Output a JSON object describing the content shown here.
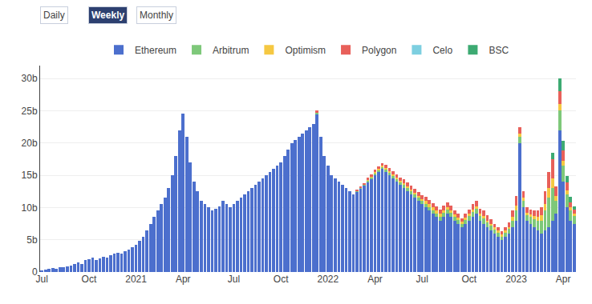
{
  "chart_data": {
    "type": "bar",
    "stacked": true,
    "grid": true,
    "legend": "upper center",
    "annotations": [
      "Daily",
      "Weekly",
      "Monthly"
    ],
    "ylim": [
      0,
      32
    ],
    "yticks": [
      0,
      {
        "value": 5,
        "label": "5b"
      },
      {
        "value": 10,
        "label": "10b"
      },
      {
        "value": 15,
        "label": "15b"
      },
      {
        "value": 20,
        "label": "20b"
      },
      {
        "value": 25,
        "label": "25b"
      },
      {
        "value": 30,
        "label": "30b"
      }
    ],
    "categories": [
      "Jul",
      null,
      null,
      null,
      null,
      null,
      null,
      null,
      null,
      null,
      null,
      null,
      null,
      "Oct",
      null,
      null,
      null,
      null,
      null,
      null,
      null,
      null,
      null,
      null,
      null,
      null,
      "2021",
      null,
      null,
      null,
      null,
      null,
      null,
      null,
      null,
      null,
      null,
      null,
      null,
      "Apr",
      null,
      null,
      null,
      null,
      null,
      null,
      null,
      null,
      null,
      null,
      null,
      null,
      null,
      "Jul",
      null,
      null,
      null,
      null,
      null,
      null,
      null,
      null,
      null,
      null,
      null,
      null,
      "Oct",
      null,
      null,
      null,
      null,
      null,
      null,
      null,
      null,
      null,
      null,
      null,
      null,
      "2022",
      null,
      null,
      null,
      null,
      null,
      null,
      null,
      null,
      null,
      null,
      null,
      null,
      "Apr",
      null,
      null,
      null,
      null,
      null,
      null,
      null,
      null,
      null,
      null,
      null,
      null,
      "Jul",
      null,
      null,
      null,
      null,
      null,
      null,
      null,
      null,
      null,
      null,
      null,
      null,
      "Oct",
      null,
      null,
      null,
      null,
      null,
      null,
      null,
      null,
      null,
      null,
      null,
      null,
      "2023",
      null,
      null,
      null,
      null,
      null,
      null,
      null,
      null,
      null,
      null,
      null,
      null,
      "Apr",
      null,
      null,
      null
    ],
    "series": [
      {
        "name": "Ethereum",
        "color": "#4c6fcd",
        "values": [
          0.3,
          0.4,
          0.5,
          0.6,
          0.5,
          0.7,
          0.8,
          0.9,
          1.0,
          1.2,
          1.5,
          1.3,
          1.8,
          2.0,
          2.2,
          1.9,
          2.1,
          2.4,
          2.2,
          2.6,
          2.8,
          3.0,
          2.9,
          3.2,
          3.5,
          3.8,
          4.2,
          4.8,
          5.5,
          6.5,
          7.5,
          8.5,
          9.5,
          10.5,
          11.5,
          13.0,
          15.0,
          18.0,
          22.0,
          24.5,
          21.0,
          17.0,
          14.0,
          12.5,
          11.0,
          10.5,
          10.0,
          9.5,
          9.8,
          10.2,
          11.0,
          10.5,
          10.0,
          10.5,
          11.0,
          11.5,
          12.0,
          12.5,
          13.0,
          13.5,
          14.0,
          14.5,
          15.0,
          15.5,
          16.0,
          16.5,
          17.0,
          18.0,
          19.0,
          20.0,
          20.5,
          21.0,
          21.5,
          22.0,
          22.5,
          23.0,
          24.5,
          21.0,
          18.0,
          16.5,
          15.0,
          14.5,
          14.0,
          13.5,
          13.0,
          12.5,
          12.0,
          12.5,
          13.0,
          13.5,
          14.0,
          14.5,
          15.0,
          15.5,
          16.0,
          15.5,
          15.0,
          14.5,
          14.0,
          13.5,
          13.0,
          12.5,
          12.0,
          11.5,
          11.0,
          10.5,
          10.0,
          9.5,
          9.0,
          8.5,
          8.0,
          8.5,
          9.0,
          8.5,
          8.0,
          7.5,
          7.0,
          7.5,
          8.0,
          8.5,
          9.0,
          8.0,
          7.5,
          7.0,
          6.5,
          6.0,
          5.5,
          5.0,
          5.5,
          6.0,
          7.0,
          8.0,
          20.0,
          10.0,
          8.0,
          7.5,
          7.0,
          6.5,
          6.0,
          6.5,
          7.0,
          8.0,
          9.0,
          22.0,
          14.0,
          10.0,
          8.0,
          7.5
        ]
      },
      {
        "name": "Arbitrum",
        "color": "#7ec87a",
        "values": [
          0,
          0,
          0,
          0,
          0,
          0,
          0,
          0,
          0,
          0,
          0,
          0,
          0,
          0,
          0,
          0,
          0,
          0,
          0,
          0,
          0,
          0,
          0,
          0,
          0,
          0,
          0,
          0,
          0,
          0,
          0,
          0,
          0,
          0,
          0,
          0,
          0,
          0,
          0,
          0,
          0,
          0,
          0,
          0,
          0,
          0,
          0,
          0,
          0,
          0,
          0,
          0,
          0,
          0,
          0,
          0,
          0,
          0,
          0,
          0,
          0,
          0,
          0,
          0,
          0,
          0,
          0,
          0,
          0,
          0,
          0,
          0,
          0,
          0,
          0,
          0,
          0.2,
          0,
          0,
          0,
          0,
          0,
          0,
          0,
          0,
          0,
          0,
          0.1,
          0.1,
          0.1,
          0.2,
          0.2,
          0.3,
          0.3,
          0.3,
          0.4,
          0.4,
          0.4,
          0.4,
          0.4,
          0.5,
          0.5,
          0.5,
          0.5,
          0.5,
          0.5,
          0.6,
          0.6,
          0.6,
          0.6,
          0.6,
          0.7,
          0.7,
          0.7,
          0.6,
          0.6,
          0.5,
          0.6,
          0.7,
          0.8,
          0.8,
          0.7,
          0.8,
          0.7,
          0.7,
          0.6,
          0.6,
          0.5,
          0.6,
          0.7,
          1.0,
          1.5,
          1.0,
          1.0,
          0.8,
          1.0,
          1.2,
          1.5,
          2.0,
          3.0,
          4.5,
          5.0,
          2.0,
          3.0,
          2.5,
          2.0,
          1.5,
          1.2
        ]
      },
      {
        "name": "Optimism",
        "color": "#f5c842",
        "values": [
          0,
          0,
          0,
          0,
          0,
          0,
          0,
          0,
          0,
          0,
          0,
          0,
          0,
          0,
          0,
          0,
          0,
          0,
          0,
          0,
          0,
          0,
          0,
          0,
          0,
          0,
          0,
          0,
          0,
          0,
          0,
          0,
          0,
          0,
          0,
          0,
          0,
          0,
          0,
          0,
          0,
          0,
          0,
          0,
          0,
          0,
          0,
          0,
          0,
          0,
          0,
          0,
          0,
          0,
          0,
          0,
          0,
          0,
          0,
          0,
          0,
          0,
          0,
          0,
          0,
          0,
          0,
          0,
          0,
          0,
          0,
          0,
          0,
          0,
          0,
          0,
          0,
          0,
          0,
          0,
          0,
          0,
          0,
          0,
          0,
          0,
          0,
          0,
          0,
          0,
          0.1,
          0.1,
          0.2,
          0.2,
          0.2,
          0.2,
          0.2,
          0.2,
          0.2,
          0.2,
          0.3,
          0.3,
          0.3,
          0.3,
          0.3,
          0.3,
          0.4,
          0.4,
          0.4,
          0.4,
          0.4,
          0.4,
          0.4,
          0.4,
          0.3,
          0.3,
          0.3,
          0.3,
          0.3,
          0.4,
          0.4,
          0.3,
          0.4,
          0.3,
          0.3,
          0.3,
          0.3,
          0.3,
          0.3,
          0.3,
          0.5,
          0.8,
          0.5,
          0.5,
          0.4,
          0.4,
          0.5,
          0.6,
          0.8,
          1.0,
          1.5,
          1.5,
          0.8,
          1.0,
          0.8,
          0.7,
          0.5,
          0.4
        ]
      },
      {
        "name": "Polygon",
        "color": "#e8605a",
        "values": [
          0,
          0,
          0,
          0,
          0,
          0,
          0,
          0,
          0,
          0,
          0,
          0,
          0,
          0,
          0,
          0,
          0,
          0,
          0,
          0,
          0,
          0,
          0,
          0,
          0,
          0,
          0,
          0,
          0,
          0,
          0,
          0,
          0,
          0,
          0,
          0,
          0,
          0,
          0,
          0,
          0,
          0,
          0,
          0,
          0,
          0,
          0,
          0,
          0,
          0,
          0,
          0,
          0,
          0,
          0,
          0,
          0,
          0,
          0,
          0,
          0,
          0,
          0,
          0,
          0,
          0,
          0,
          0,
          0,
          0,
          0,
          0,
          0,
          0,
          0,
          0,
          0.3,
          0,
          0,
          0,
          0,
          0,
          0,
          0,
          0,
          0,
          0,
          0.1,
          0.2,
          0.2,
          0.3,
          0.3,
          0.4,
          0.4,
          0.4,
          0.5,
          0.5,
          0.5,
          0.5,
          0.5,
          0.6,
          0.6,
          0.6,
          0.6,
          0.6,
          0.6,
          0.7,
          0.7,
          0.7,
          0.7,
          0.7,
          0.7,
          0.7,
          0.7,
          0.6,
          0.6,
          0.5,
          0.6,
          0.7,
          0.8,
          0.9,
          0.8,
          0.8,
          0.8,
          0.7,
          0.6,
          0.6,
          0.5,
          0.6,
          0.7,
          1.0,
          1.5,
          1.0,
          1.0,
          0.8,
          0.8,
          0.9,
          1.0,
          1.3,
          2.0,
          2.5,
          3.0,
          1.5,
          2.0,
          1.5,
          1.2,
          0.8,
          0.6
        ]
      },
      {
        "name": "Celo",
        "color": "#7dcfe0",
        "values": [
          0,
          0,
          0,
          0,
          0,
          0,
          0,
          0,
          0,
          0,
          0,
          0,
          0,
          0,
          0,
          0,
          0,
          0,
          0,
          0,
          0,
          0,
          0,
          0,
          0,
          0,
          0,
          0,
          0,
          0,
          0,
          0,
          0,
          0,
          0,
          0,
          0,
          0,
          0,
          0,
          0,
          0,
          0,
          0,
          0,
          0,
          0,
          0,
          0,
          0,
          0,
          0,
          0,
          0,
          0,
          0,
          0,
          0,
          0,
          0,
          0,
          0,
          0,
          0,
          0,
          0,
          0,
          0,
          0,
          0,
          0,
          0,
          0,
          0,
          0,
          0,
          0,
          0,
          0,
          0,
          0,
          0,
          0,
          0,
          0,
          0,
          0,
          0,
          0,
          0,
          0,
          0,
          0,
          0,
          0,
          0,
          0,
          0,
          0,
          0,
          0,
          0,
          0,
          0,
          0,
          0,
          0,
          0,
          0,
          0,
          0,
          0,
          0,
          0,
          0,
          0,
          0,
          0,
          0,
          0,
          0,
          0,
          0,
          0,
          0,
          0,
          0,
          0,
          0,
          0,
          0,
          0,
          0,
          0,
          0,
          0,
          0,
          0,
          0,
          0,
          0,
          0,
          0,
          0,
          0,
          0,
          0,
          0
        ]
      },
      {
        "name": "BSC",
        "color": "#3daa72",
        "values": [
          0,
          0,
          0,
          0,
          0,
          0,
          0,
          0,
          0,
          0,
          0,
          0,
          0,
          0,
          0,
          0,
          0,
          0,
          0,
          0,
          0,
          0,
          0,
          0,
          0,
          0,
          0,
          0,
          0,
          0,
          0,
          0,
          0,
          0,
          0,
          0,
          0,
          0,
          0,
          0,
          0,
          0,
          0,
          0,
          0,
          0,
          0,
          0,
          0,
          0,
          0,
          0,
          0,
          0,
          0,
          0,
          0,
          0,
          0,
          0,
          0,
          0,
          0,
          0,
          0,
          0,
          0,
          0,
          0,
          0,
          0,
          0,
          0,
          0,
          0,
          0,
          0,
          0,
          0,
          0,
          0,
          0,
          0,
          0,
          0,
          0,
          0,
          0,
          0,
          0,
          0,
          0,
          0,
          0,
          0,
          0,
          0,
          0,
          0,
          0,
          0,
          0,
          0,
          0,
          0,
          0,
          0,
          0,
          0,
          0,
          0,
          0,
          0,
          0,
          0,
          0,
          0,
          0,
          0,
          0,
          0,
          0,
          0,
          0,
          0,
          0,
          0,
          0,
          0,
          0,
          0,
          0,
          0,
          0,
          0,
          0,
          0,
          0,
          0,
          0,
          0,
          1.0,
          0,
          2.0,
          1.5,
          1.0,
          0.8,
          0.5
        ]
      }
    ]
  }
}
